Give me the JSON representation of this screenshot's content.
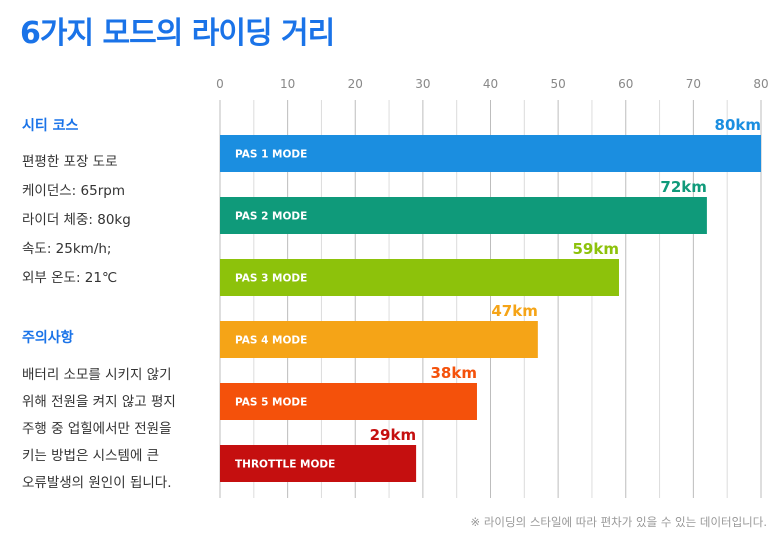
{
  "title": "6가지 모드의 라이딩 거리",
  "city_course": {
    "heading": "시티 코스",
    "specs": [
      "편평한 포장 도로",
      "케이던스: 65rpm",
      "라이더 체중: 80kg",
      "속도: 25km/h;",
      "외부 온도: 21℃"
    ]
  },
  "caution": {
    "heading": "주의사항",
    "lines": [
      "배터리 소모를 시키지 않기",
      "위해 전원을 켜지 않고 평지",
      "주행 중 업힐에서만 전원을",
      "키는 방법은 시스템에 큰",
      "오류발생의 원인이 됩니다."
    ]
  },
  "footnote": "※ 라이딩의 스타일에 따라 편차가 있을 수 있는 데이터입니다.",
  "chart_data": {
    "type": "bar",
    "orientation": "horizontal",
    "categories": [
      "PAS 1 MODE",
      "PAS 2 MODE",
      "PAS 3 MODE",
      "PAS 4 MODE",
      "PAS 5 MODE",
      "THROTTLE MODE"
    ],
    "values": [
      80,
      72,
      59,
      47,
      38,
      29
    ],
    "value_labels": [
      "80km",
      "72km",
      "59km",
      "47km",
      "38km",
      "29km"
    ],
    "colors": [
      "#1b8ee0",
      "#0f9a7a",
      "#8dc20b",
      "#f5a417",
      "#f4510b",
      "#c50f0f"
    ],
    "xlim": [
      0,
      80
    ],
    "ticks": [
      0,
      10,
      20,
      30,
      40,
      50,
      60,
      70,
      80
    ],
    "grid": true,
    "unit": "km"
  }
}
